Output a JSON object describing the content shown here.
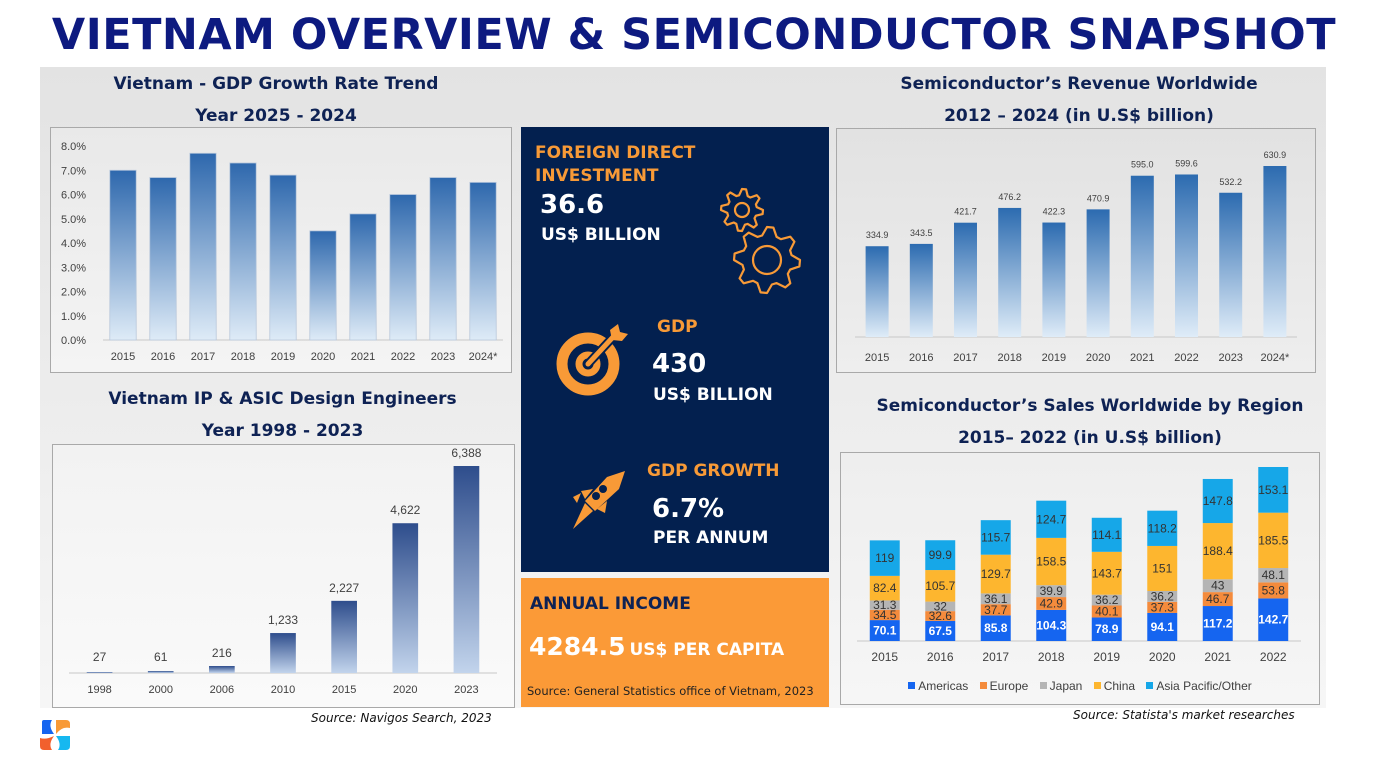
{
  "page": {
    "title": "VIETNAM OVERVIEW & SEMICONDUCTOR SNAPSHOT"
  },
  "colors": {
    "title": "#0d1a80",
    "navy": "#03204f",
    "orange": "#fb9a37",
    "bar_top": "#2e68ad",
    "bar_bottom": "#deebf7",
    "americas": "#1565f0",
    "europe": "#f48b3c",
    "japan": "#b5b5b5",
    "china": "#fdb62f",
    "asia_pacific": "#16a7e8"
  },
  "stats": {
    "fdi": {
      "label_line1": "FOREIGN DIRECT",
      "label_line2": "INVESTMENT",
      "value": "36.6",
      "unit": "US$ BILLION",
      "icon": "gears-icon"
    },
    "gdp": {
      "label": "GDP",
      "value": "430",
      "unit": "US$ BILLION",
      "icon": "target-arrow-icon"
    },
    "gdp_growth": {
      "label": "GDP GROWTH",
      "value": "6.7%",
      "unit": "PER ANNUM",
      "icon": "rocket-icon"
    },
    "annual_income": {
      "label": "ANNUAL INCOME",
      "value": "4284.5",
      "unit": "US$ PER CAPITA",
      "source": "Source: General Statistics office of Vietnam, 2023"
    }
  },
  "sources": {
    "engineers": "Source: Navigos Search, 2023",
    "sales": "Source: Statista's market researches"
  },
  "chart_data": [
    {
      "id": "gdp_growth",
      "type": "bar",
      "title": "Vietnam - GDP Growth Rate Trend",
      "subtitle": "Year 2025 - 2024",
      "categories": [
        "2015",
        "2016",
        "2017",
        "2018",
        "2019",
        "2020",
        "2021",
        "2022",
        "2023",
        "2024*"
      ],
      "values": [
        7.0,
        6.7,
        7.7,
        7.3,
        6.8,
        4.5,
        5.2,
        6.0,
        6.7,
        6.5
      ],
      "yticks": [
        "0.0%",
        "1.0%",
        "2.0%",
        "3.0%",
        "4.0%",
        "5.0%",
        "6.0%",
        "7.0%",
        "8.0%"
      ],
      "ylim": [
        0,
        8
      ],
      "xlabel": "",
      "ylabel": "",
      "grid": false
    },
    {
      "id": "engineers",
      "type": "bar",
      "title": "Vietnam IP & ASIC Design Engineers",
      "subtitle": "Year 1998 - 2023",
      "categories": [
        "1998",
        "2000",
        "2006",
        "2010",
        "2015",
        "2020",
        "2023"
      ],
      "values": [
        27,
        61,
        216,
        1233,
        2227,
        4622,
        6388
      ],
      "labels": [
        "27",
        "61",
        "216",
        "1,233",
        "2,227",
        "4,622",
        "6,388"
      ],
      "ylim": [
        0,
        6388
      ],
      "xlabel": "",
      "ylabel": "",
      "grid": false
    },
    {
      "id": "revenue",
      "type": "bar",
      "title": "Semiconductor’s Revenue Worldwide",
      "subtitle": "2012 – 2024 (in U.S$ billion)",
      "categories": [
        "2015",
        "2016",
        "2017",
        "2018",
        "2019",
        "2020",
        "2021",
        "2022",
        "2023",
        "2024*"
      ],
      "values": [
        334.9,
        343.5,
        421.7,
        476.2,
        422.3,
        470.9,
        595.0,
        599.6,
        532.2,
        630.9
      ],
      "labels": [
        "334.9",
        "343.5",
        "421.7",
        "476.2",
        "422.3",
        "470.9",
        "595.0",
        "599.6",
        "532.2",
        "630.9"
      ],
      "ylim": [
        0,
        630.9
      ],
      "xlabel": "",
      "ylabel": "",
      "grid": false
    },
    {
      "id": "sales_region",
      "type": "bar",
      "stacked": true,
      "title": "Semiconductor’s Sales Worldwide by Region",
      "subtitle": "2015– 2022 (in U.S$ billion)",
      "categories": [
        "2015",
        "2016",
        "2017",
        "2018",
        "2019",
        "2020",
        "2021",
        "2022"
      ],
      "series": [
        {
          "name": "Americas",
          "color": "#1565f0",
          "values": [
            70.1,
            67.5,
            85.8,
            104.3,
            78.9,
            94.1,
            117.2,
            142.7
          ],
          "labels": [
            "70.1",
            "67.5",
            "85.8",
            "104.3",
            "78.9",
            "94.1",
            "117.2",
            "142.7"
          ]
        },
        {
          "name": "Europe",
          "color": "#f48b3c",
          "values": [
            34.5,
            32.6,
            37.7,
            42.9,
            40.1,
            37.3,
            46.7,
            53.8
          ],
          "labels": [
            "34.5",
            "32.6",
            "37.7",
            "42.9",
            "40.1",
            "37.3",
            "46.7",
            "53.8"
          ]
        },
        {
          "name": "Japan",
          "color": "#b5b5b5",
          "values": [
            31.3,
            32,
            36.1,
            39.9,
            36.2,
            36.2,
            43,
            48.1
          ],
          "labels": [
            "31.3",
            "32",
            "36.1",
            "39.9",
            "36.2",
            "36.2",
            "43",
            "48.1"
          ]
        },
        {
          "name": "China",
          "color": "#fdb62f",
          "values": [
            82.4,
            105.7,
            129.7,
            158.5,
            143.7,
            151,
            188.4,
            185.5
          ],
          "labels": [
            "82.4",
            "105.7",
            "129.7",
            "158.5",
            "143.7",
            "151",
            "188.4",
            "185.5"
          ]
        },
        {
          "name": "Asia Pacific/Other",
          "color": "#16a7e8",
          "values": [
            119,
            99.9,
            115.7,
            124.7,
            114.1,
            118.2,
            147.8,
            153.1
          ],
          "labels": [
            "119",
            "99.9",
            "115.7",
            "124.7",
            "114.1",
            "118.2",
            "147.8",
            "153.1"
          ]
        }
      ],
      "legend_position": "bottom",
      "xlabel": "",
      "ylabel": "",
      "grid": false
    }
  ]
}
